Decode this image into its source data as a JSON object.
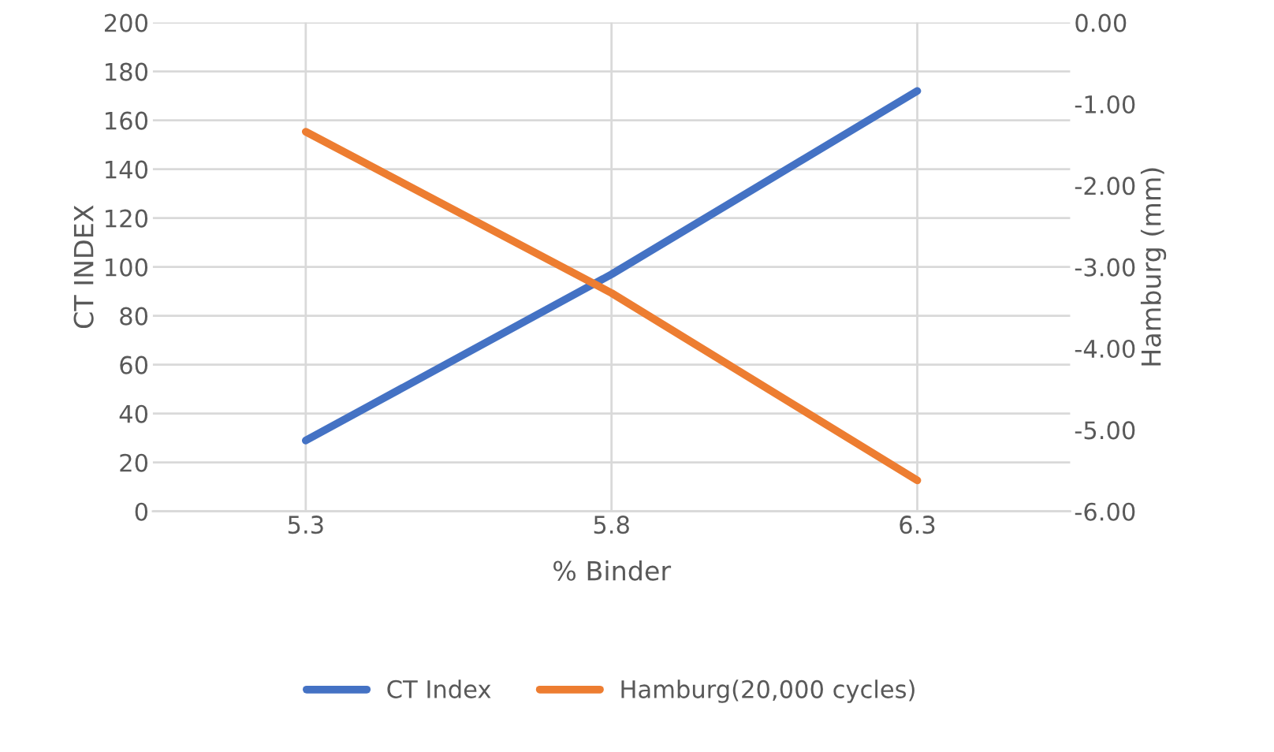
{
  "chart_data": {
    "type": "line",
    "categories": [
      "5.3",
      "5.8",
      "6.3"
    ],
    "xlabel": "% Binder",
    "ylabel": "CT INDEX",
    "y2label": "Hamburg (mm)",
    "series": [
      {
        "name": "CT Index",
        "color": "#4472c4",
        "values": [
          29,
          97,
          172
        ]
      },
      {
        "name": "Hamburg(20,000 cycles)",
        "color": "#ed7d31",
        "values": [
          -1.34,
          -3.32,
          -5.62
        ],
        "axis": "y2"
      }
    ],
    "ylim": [
      0,
      200
    ],
    "yticks": [
      0,
      20,
      40,
      60,
      80,
      100,
      120,
      140,
      160,
      180,
      200
    ],
    "y2lim": [
      -6,
      0
    ],
    "y2ticks": [
      {
        "value": -6,
        "label": "-6.00"
      },
      {
        "value": -5,
        "label": "-5.00"
      },
      {
        "value": -4,
        "label": "-4.00"
      },
      {
        "value": -3,
        "label": "-3.00"
      },
      {
        "value": -2,
        "label": "-2.00"
      },
      {
        "value": -1,
        "label": "-1.00"
      },
      {
        "value": 0,
        "label": "0.00"
      }
    ],
    "grid": true,
    "legend": "bottom",
    "marker": "none",
    "line_style": "solid"
  }
}
